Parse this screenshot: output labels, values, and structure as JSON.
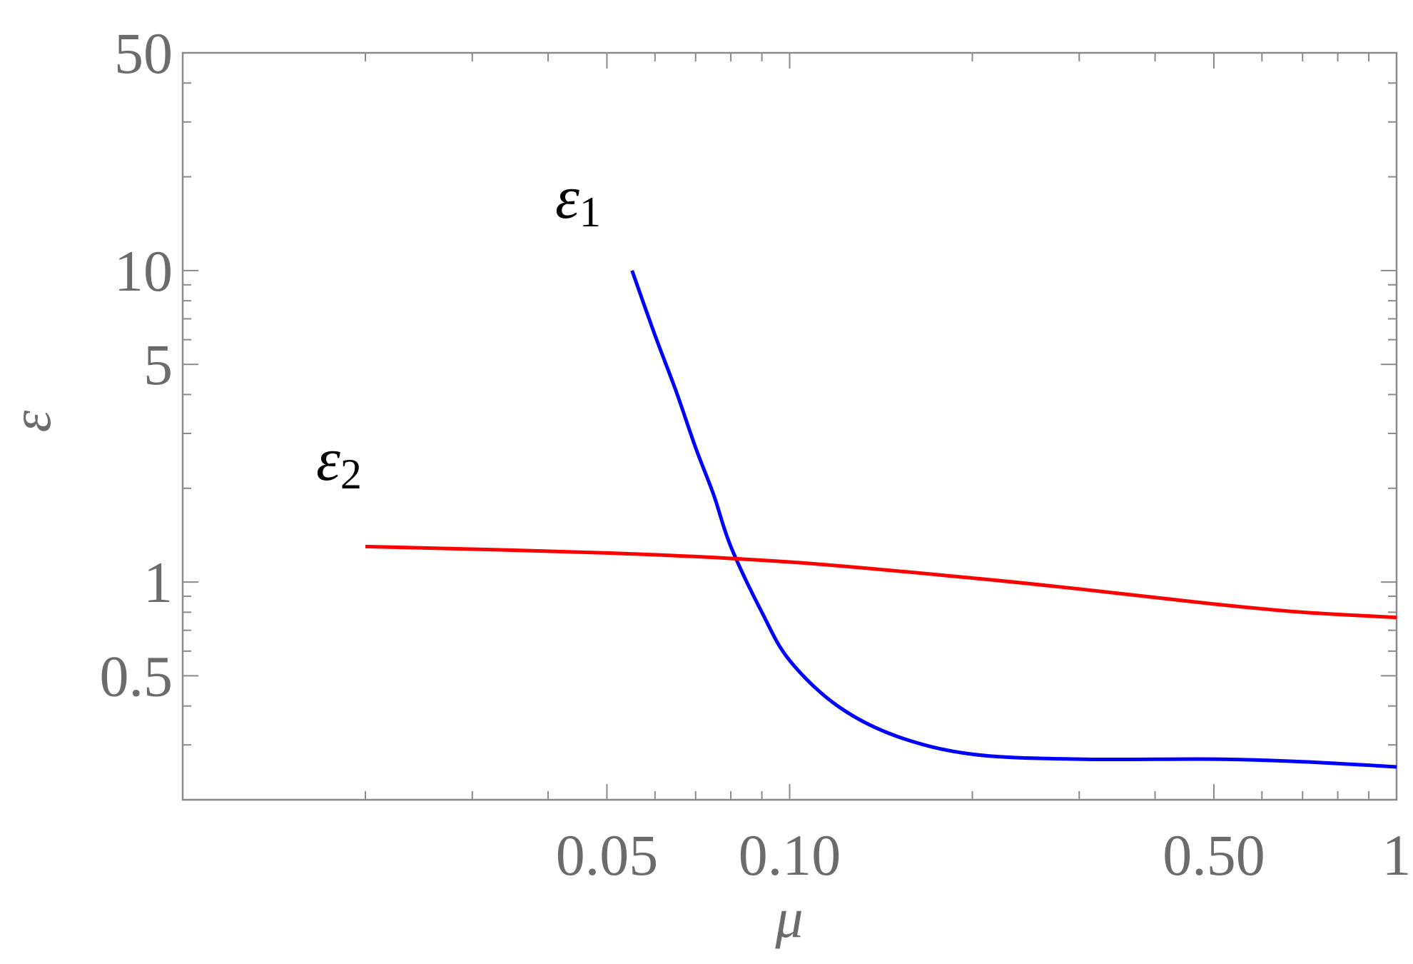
{
  "chart_data": {
    "type": "line",
    "title": "",
    "xlabel": "μ",
    "ylabel": "ε",
    "xscale": "log",
    "yscale": "log",
    "xlim": [
      0.01,
      1.0
    ],
    "ylim": [
      0.2,
      50
    ],
    "xticks_labeled": [
      {
        "value": 0.05,
        "label": "0.05"
      },
      {
        "value": 0.1,
        "label": "0.10"
      },
      {
        "value": 0.5,
        "label": "0.50"
      },
      {
        "value": 1.0,
        "label": "1"
      }
    ],
    "xticks_minor": [
      0.02,
      0.03,
      0.04,
      0.06,
      0.07,
      0.08,
      0.09,
      0.2,
      0.3,
      0.4,
      0.6,
      0.7,
      0.8,
      0.9
    ],
    "yticks_labeled": [
      {
        "value": 0.5,
        "label": "0.5"
      },
      {
        "value": 1,
        "label": "1"
      },
      {
        "value": 5,
        "label": "5"
      },
      {
        "value": 10,
        "label": "10"
      },
      {
        "value": 50,
        "label": "50"
      }
    ],
    "yticks_minor": [
      0.3,
      0.4,
      0.6,
      0.7,
      0.8,
      0.9,
      2,
      3,
      4,
      6,
      7,
      8,
      9,
      20,
      30,
      40
    ],
    "grid": false,
    "series": [
      {
        "name": "ε1",
        "label_base": "ε",
        "label_sub": "1",
        "color": "#0000ff",
        "x": [
          0.055,
          0.06,
          0.065,
          0.07,
          0.075,
          0.08,
          0.09,
          0.1,
          0.12,
          0.15,
          0.2,
          0.3,
          0.5,
          0.7,
          1.0
        ],
        "y": [
          10.0,
          6.2,
          4.1,
          2.7,
          1.9,
          1.3,
          0.8,
          0.56,
          0.4,
          0.32,
          0.28,
          0.27,
          0.27,
          0.265,
          0.255
        ]
      },
      {
        "name": "ε2",
        "label_base": "ε",
        "label_sub": "2",
        "color": "#ff0000",
        "x": [
          0.02,
          0.05,
          0.1,
          0.2,
          0.3,
          0.5,
          0.7,
          1.0
        ],
        "y": [
          1.3,
          1.24,
          1.16,
          1.03,
          0.95,
          0.85,
          0.8,
          0.77
        ]
      }
    ]
  }
}
